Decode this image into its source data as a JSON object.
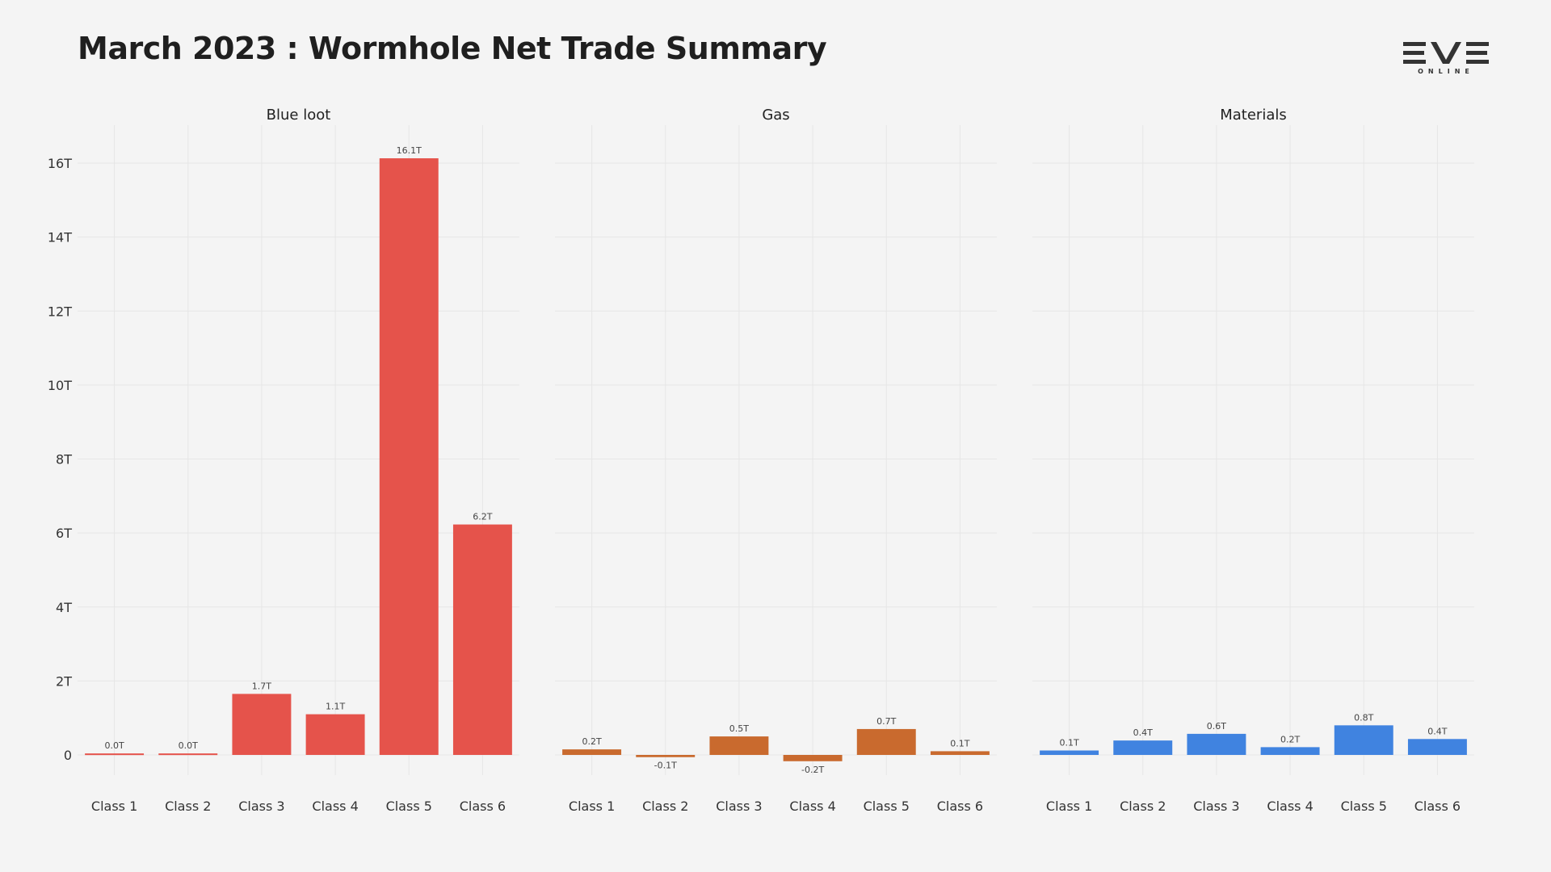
{
  "title": "March 2023 : Wormhole Net Trade Summary",
  "logo": {
    "main": "EVE",
    "sub": "ONLINE"
  },
  "chart_data": [
    {
      "type": "bar",
      "title": "Blue loot",
      "categories": [
        "Class 1",
        "Class 2",
        "Class 3",
        "Class 4",
        "Class 5",
        "Class 6"
      ],
      "values": [
        0.04,
        0.04,
        1.65,
        1.1,
        16.13,
        6.23
      ],
      "data_labels": [
        "0.0T",
        "0.0T",
        "1.7T",
        "1.1T",
        "16.1T",
        "6.2T"
      ],
      "color": "#e5534b"
    },
    {
      "type": "bar",
      "title": "Gas",
      "categories": [
        "Class 1",
        "Class 2",
        "Class 3",
        "Class 4",
        "Class 5",
        "Class 6"
      ],
      "values": [
        0.15,
        -0.06,
        0.5,
        -0.17,
        0.7,
        0.1
      ],
      "data_labels": [
        "0.2T",
        "-0.1T",
        "0.5T",
        "-0.2T",
        "0.7T",
        "0.1T"
      ],
      "color": "#c96a2e"
    },
    {
      "type": "bar",
      "title": "Materials",
      "categories": [
        "Class 1",
        "Class 2",
        "Class 3",
        "Class 4",
        "Class 5",
        "Class 6"
      ],
      "values": [
        0.12,
        0.39,
        0.57,
        0.21,
        0.8,
        0.43
      ],
      "data_labels": [
        "0.1T",
        "0.4T",
        "0.6T",
        "0.2T",
        "0.8T",
        "0.4T"
      ],
      "color": "#4083e0"
    }
  ],
  "y_axis": {
    "ticks": [
      0,
      2,
      4,
      6,
      8,
      10,
      12,
      14,
      16
    ],
    "tick_labels": [
      "0",
      "2T",
      "4T",
      "6T",
      "8T",
      "10T",
      "12T",
      "14T",
      "16T"
    ],
    "range": [
      -1.2,
      17
    ]
  },
  "grid": true
}
